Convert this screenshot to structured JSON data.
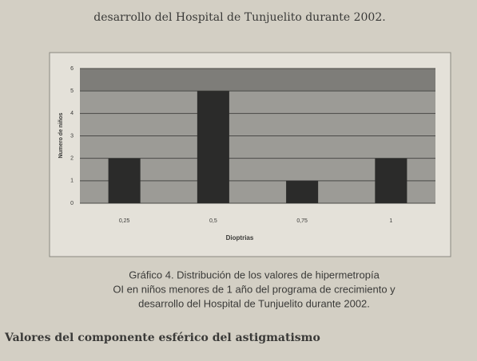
{
  "header": {
    "text": "desarrollo del Hospital de Tunjuelito durante 2002."
  },
  "chart_data": {
    "type": "bar",
    "xlabel": "Dioptrias",
    "ylabel": "Numero de niños",
    "categories": [
      "0,25",
      "0,5",
      "0,75",
      "1"
    ],
    "values": [
      2,
      5,
      1,
      2
    ],
    "color": "#2b2b2a",
    "ylim": [
      0,
      6
    ],
    "yticks": [
      0,
      1,
      2,
      3,
      4,
      5,
      6
    ],
    "grid": true
  },
  "caption": {
    "lines": [
      "Gráfico 4. Distribución de los valores de hipermetropía",
      "OI en niños menores de 1 año del programa de crecimiento y",
      "desarrollo del Hospital de Tunjuelito durante 2002."
    ]
  },
  "section": {
    "heading": "Valores del componente esférico del astigmatismo"
  }
}
